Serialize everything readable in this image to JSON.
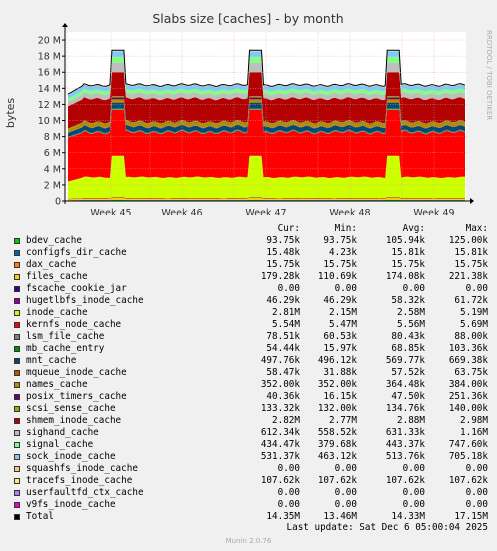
{
  "chart_data": {
    "type": "area",
    "title": "Slabs size [caches] - by month",
    "ylabel": "bytes",
    "side_label": "RRDTOOL / TOBI OETIKER",
    "ylim": [
      0,
      21000000
    ],
    "y_ticks": [
      {
        "v": 0,
        "label": "0"
      },
      {
        "v": 2000000,
        "label": "2 M"
      },
      {
        "v": 4000000,
        "label": "4 M"
      },
      {
        "v": 6000000,
        "label": "6 M"
      },
      {
        "v": 8000000,
        "label": "8 M"
      },
      {
        "v": 10000000,
        "label": "10 M"
      },
      {
        "v": 12000000,
        "label": "12 M"
      },
      {
        "v": 14000000,
        "label": "14 M"
      },
      {
        "v": 16000000,
        "label": "16 M"
      },
      {
        "v": 18000000,
        "label": "18 M"
      },
      {
        "v": 20000000,
        "label": "20 M"
      }
    ],
    "x_ticks": [
      "Week 45",
      "Week 46",
      "Week 47",
      "Week 48",
      "Week 49"
    ],
    "spikes": [
      0.0,
      0.44,
      0.39,
      0.97
    ],
    "legend_headers": [
      "Cur:",
      "Min:",
      "Avg:",
      "Max:"
    ],
    "series": [
      {
        "name": "bdev_cache",
        "color": "#00cc00",
        "cur": "93.75k",
        "min": "93.75k",
        "avg": "105.94k",
        "max": "125.00k"
      },
      {
        "name": "configfs_dir_cache",
        "color": "#0066b3",
        "cur": "15.48k",
        "min": "4.23k",
        "avg": "15.81k",
        "max": "15.81k"
      },
      {
        "name": "dax_cache",
        "color": "#ff8000",
        "cur": "15.75k",
        "min": "15.75k",
        "avg": "15.75k",
        "max": "15.75k"
      },
      {
        "name": "files_cache",
        "color": "#ffcc00",
        "cur": "179.28k",
        "min": "110.69k",
        "avg": "174.08k",
        "max": "221.38k"
      },
      {
        "name": "fscache_cookie_jar",
        "color": "#330099",
        "cur": "0.00",
        "min": "0.00",
        "avg": "0.00",
        "max": "0.00"
      },
      {
        "name": "hugetlbfs_inode_cache",
        "color": "#990099",
        "cur": "46.29k",
        "min": "46.29k",
        "avg": "58.32k",
        "max": "61.72k"
      },
      {
        "name": "inode_cache",
        "color": "#ccff00",
        "cur": "2.81M",
        "min": "2.15M",
        "avg": "2.58M",
        "max": "5.19M"
      },
      {
        "name": "kernfs_node_cache",
        "color": "#ff0000",
        "cur": "5.54M",
        "min": "5.47M",
        "avg": "5.56M",
        "max": "5.69M"
      },
      {
        "name": "lsm_file_cache",
        "color": "#808080",
        "cur": "78.51k",
        "min": "60.53k",
        "avg": "80.43k",
        "max": "88.00k"
      },
      {
        "name": "mb_cache_entry",
        "color": "#008f00",
        "cur": "54.44k",
        "min": "15.97k",
        "avg": "68.85k",
        "max": "103.36k"
      },
      {
        "name": "mnt_cache",
        "color": "#00487d",
        "cur": "497.76k",
        "min": "496.12k",
        "avg": "569.77k",
        "max": "669.38k"
      },
      {
        "name": "mqueue_inode_cache",
        "color": "#b35a00",
        "cur": "58.47k",
        "min": "31.88k",
        "avg": "57.52k",
        "max": "63.75k"
      },
      {
        "name": "names_cache",
        "color": "#b38f00",
        "cur": "352.00k",
        "min": "352.00k",
        "avg": "364.48k",
        "max": "384.00k"
      },
      {
        "name": "posix_timers_cache",
        "color": "#6b006b",
        "cur": "40.36k",
        "min": "16.15k",
        "avg": "47.50k",
        "max": "251.36k"
      },
      {
        "name": "scsi_sense_cache",
        "color": "#8fb300",
        "cur": "133.32k",
        "min": "132.00k",
        "avg": "134.76k",
        "max": "140.00k"
      },
      {
        "name": "shmem_inode_cache",
        "color": "#b30000",
        "cur": "2.82M",
        "min": "2.77M",
        "avg": "2.88M",
        "max": "2.98M"
      },
      {
        "name": "sighand_cache",
        "color": "#bebebe",
        "cur": "612.34k",
        "min": "558.52k",
        "avg": "631.33k",
        "max": "1.16M"
      },
      {
        "name": "signal_cache",
        "color": "#80ff80",
        "cur": "434.47k",
        "min": "379.68k",
        "avg": "443.37k",
        "max": "747.60k"
      },
      {
        "name": "sock_inode_cache",
        "color": "#80c9ff",
        "cur": "531.37k",
        "min": "463.12k",
        "avg": "513.76k",
        "max": "705.18k"
      },
      {
        "name": "squashfs_inode_cache",
        "color": "#ffc080",
        "cur": "0.00",
        "min": "0.00",
        "avg": "0.00",
        "max": "0.00"
      },
      {
        "name": "tracefs_inode_cache",
        "color": "#ffe680",
        "cur": "107.62k",
        "min": "107.62k",
        "avg": "107.62k",
        "max": "107.62k"
      },
      {
        "name": "userfaultfd_ctx_cache",
        "color": "#aa80ff",
        "cur": "0.00",
        "min": "0.00",
        "avg": "0.00",
        "max": "0.00"
      },
      {
        "name": "v9fs_inode_cache",
        "color": "#ee00cc",
        "cur": "0.00",
        "min": "0.00",
        "avg": "0.00",
        "max": "0.00"
      }
    ],
    "total": {
      "name": "Total",
      "color": "#000000",
      "cur": "14.35M",
      "min": "13.46M",
      "avg": "14.33M",
      "max": "17.15M"
    }
  },
  "footer": {
    "last_update": "Last update:  Sat Dec  6 05:00:04 2025",
    "version": "Munin 2.0.76"
  }
}
